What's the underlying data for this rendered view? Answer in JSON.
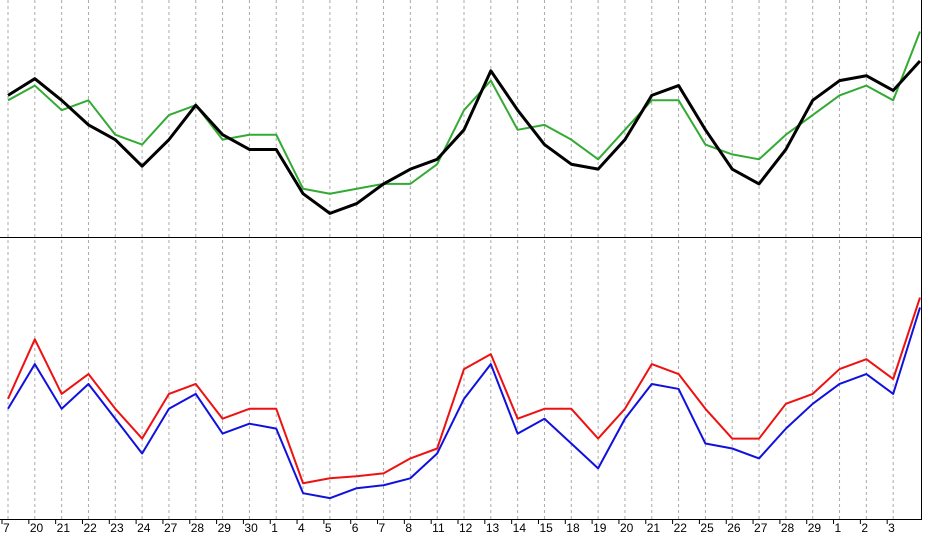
{
  "chart_data": [
    {
      "type": "line",
      "ylim": [
        0,
        237
      ],
      "grid": true,
      "series": [
        {
          "name": null,
          "color": "#33aa33",
          "width": 2,
          "values": [
            137,
            152,
            127,
            137,
            102,
            92,
            122,
            132,
            97,
            102,
            102,
            47,
            42,
            47,
            52,
            52,
            72,
            127,
            157,
            107,
            112,
            97,
            77,
            107,
            137,
            137,
            92,
            82,
            77,
            102,
            122,
            142,
            152,
            137,
            207
          ]
        },
        {
          "name": null,
          "color": "#000000",
          "width": 3,
          "values": [
            142,
            159,
            137,
            112,
            97,
            70,
            97,
            132,
            102,
            87,
            87,
            42,
            22,
            32,
            52,
            67,
            77,
            107,
            167,
            127,
            92,
            72,
            67,
            97,
            142,
            152,
            107,
            67,
            52,
            87,
            137,
            157,
            162,
            147,
            177
          ]
        }
      ]
    },
    {
      "type": "line",
      "ylim": [
        0,
        280
      ],
      "grid": true,
      "categories": [
        "7",
        "20",
        "21",
        "22",
        "23",
        "24",
        "27",
        "28",
        "29",
        "30",
        "1",
        "4",
        "5",
        "6",
        "7",
        "8",
        "11",
        "12",
        "13",
        "14",
        "15",
        "18",
        "19",
        "20",
        "21",
        "22",
        "25",
        "26",
        "27",
        "28",
        "29",
        "1",
        "2",
        "3",
        null
      ],
      "series": [
        {
          "name": null,
          "color": "#ee1111",
          "width": 2,
          "values": [
            120,
            180,
            125,
            145,
            110,
            80,
            125,
            135,
            100,
            110,
            110,
            35,
            40,
            42,
            45,
            60,
            70,
            150,
            165,
            100,
            110,
            110,
            80,
            110,
            155,
            145,
            110,
            80,
            80,
            115,
            125,
            150,
            160,
            140,
            222
          ]
        },
        {
          "name": null,
          "color": "#1111dd",
          "width": 2,
          "values": [
            110,
            155,
            110,
            135,
            100,
            65,
            110,
            125,
            85,
            95,
            90,
            25,
            20,
            30,
            33,
            40,
            65,
            120,
            155,
            85,
            100,
            75,
            50,
            100,
            135,
            130,
            75,
            70,
            60,
            90,
            115,
            135,
            145,
            125,
            212
          ]
        }
      ]
    }
  ]
}
